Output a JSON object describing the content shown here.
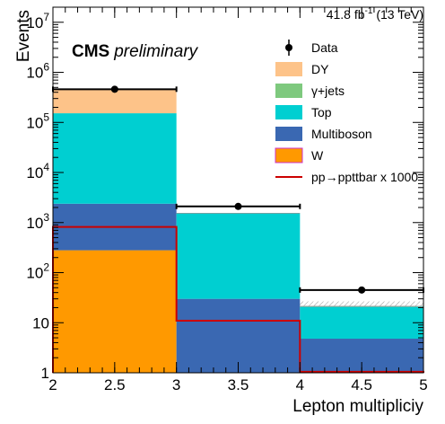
{
  "lumi": {
    "value": "41.8 fb",
    "exp": "-1",
    "energy": " (13 TeV)"
  },
  "cms": {
    "label": "CMS",
    "sub": "preliminary"
  },
  "colors": {
    "DY": "#fdc389",
    "gamma_jets": "#7ec97e",
    "Top": "#00cfd1",
    "Multiboson": "#3a68b2",
    "W": "#ff9900",
    "signal": "#cc0000",
    "data": "#000000"
  },
  "legend": [
    {
      "key": "Data",
      "label": "Data",
      "kind": "marker"
    },
    {
      "key": "DY",
      "label": "DY",
      "kind": "box"
    },
    {
      "key": "gamma_jets",
      "label": "γ+jets",
      "kind": "box"
    },
    {
      "key": "Top",
      "label": "Top",
      "kind": "box"
    },
    {
      "key": "Multiboson",
      "label": "Multiboson",
      "kind": "box"
    },
    {
      "key": "W",
      "label": "W",
      "kind": "box"
    },
    {
      "key": "signal",
      "label": "pp→ppttbar x 1000",
      "kind": "line"
    }
  ],
  "chart_data": {
    "type": "bar",
    "xlabel": "Lepton multipliciy",
    "ylabel": "Events",
    "ylog": true,
    "xlim": [
      2,
      5
    ],
    "ylim": [
      1,
      20000000
    ],
    "x_ticks": [
      "2",
      "2.5",
      "3",
      "3.5",
      "4",
      "4.5",
      "5"
    ],
    "y_ticks": [
      {
        "value": 1,
        "label": "1"
      },
      {
        "value": 10,
        "label": "10"
      },
      {
        "value": 100,
        "label": "10",
        "sup": "2"
      },
      {
        "value": 1000,
        "label": "10",
        "sup": "3"
      },
      {
        "value": 10000,
        "label": "10",
        "sup": "4"
      },
      {
        "value": 100000,
        "label": "10",
        "sup": "5"
      },
      {
        "value": 1000000,
        "label": "10",
        "sup": "6"
      },
      {
        "value": 10000000,
        "label": "10",
        "sup": "7"
      }
    ],
    "bins": [
      [
        2,
        3
      ],
      [
        3,
        4
      ],
      [
        4,
        5
      ]
    ],
    "stacked_series": [
      {
        "name": "W",
        "key": "W",
        "values": [
          280,
          0,
          0
        ]
      },
      {
        "name": "Multiboson",
        "key": "Multiboson",
        "values": [
          2100,
          30,
          4.8
        ]
      },
      {
        "name": "Top",
        "key": "Top",
        "values": [
          150000,
          1500,
          16
        ]
      },
      {
        "name": "γ+jets",
        "key": "gamma_jets",
        "values": [
          0,
          0,
          0
        ]
      },
      {
        "name": "DY",
        "key": "DY",
        "values": [
          310000,
          0,
          0.5
        ]
      }
    ],
    "data": {
      "name": "Data",
      "x": [
        2.5,
        3.5,
        4.5
      ],
      "y": [
        460000,
        2100,
        45
      ]
    },
    "signal": {
      "name": "pp→ppttbar x 1000",
      "values": [
        820,
        11,
        1.05
      ]
    }
  }
}
